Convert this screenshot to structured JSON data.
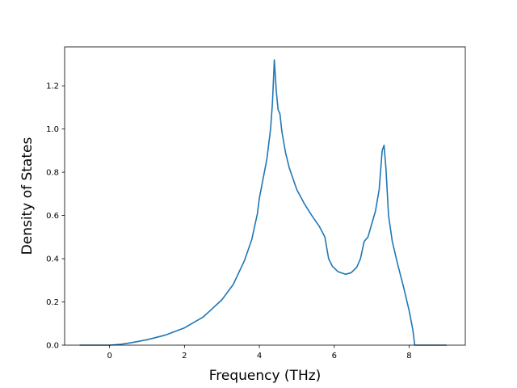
{
  "chart_data": {
    "type": "line",
    "title": "",
    "xlabel": "Frequency (THz)",
    "ylabel": "Density of States",
    "xlim": [
      -1.2,
      9.5
    ],
    "ylim": [
      0.0,
      1.38
    ],
    "xticks": [
      0,
      2,
      4,
      6,
      8
    ],
    "yticks": [
      0.0,
      0.2,
      0.4,
      0.6,
      0.8,
      1.0,
      1.2
    ],
    "xtick_labels": [
      "0",
      "2",
      "4",
      "6",
      "8"
    ],
    "ytick_labels": [
      "0.0",
      "0.2",
      "0.4",
      "0.6",
      "0.8",
      "1.0",
      "1.2"
    ],
    "grid": false,
    "legend": "none",
    "series": [
      {
        "color": "#1f77b4",
        "x": [
          -0.8,
          0.0,
          0.3,
          0.6,
          1.0,
          1.5,
          2.0,
          2.5,
          3.0,
          3.3,
          3.6,
          3.8,
          3.95,
          4.0,
          4.1,
          4.2,
          4.3,
          4.35,
          4.4,
          4.45,
          4.5,
          4.55,
          4.6,
          4.7,
          4.8,
          5.0,
          5.2,
          5.4,
          5.6,
          5.75,
          5.85,
          5.95,
          6.1,
          6.3,
          6.45,
          6.6,
          6.7,
          6.75,
          6.8,
          6.9,
          7.0,
          7.1,
          7.2,
          7.28,
          7.33,
          7.38,
          7.45,
          7.55,
          7.7,
          7.85,
          8.0,
          8.1,
          8.15,
          8.4,
          9.0
        ],
        "y": [
          0.0,
          0.0,
          0.004,
          0.012,
          0.025,
          0.047,
          0.08,
          0.13,
          0.21,
          0.28,
          0.39,
          0.49,
          0.61,
          0.68,
          0.77,
          0.86,
          1.0,
          1.12,
          1.32,
          1.18,
          1.09,
          1.07,
          0.99,
          0.89,
          0.82,
          0.72,
          0.655,
          0.6,
          0.55,
          0.5,
          0.4,
          0.365,
          0.34,
          0.328,
          0.335,
          0.36,
          0.4,
          0.44,
          0.48,
          0.5,
          0.56,
          0.62,
          0.72,
          0.9,
          0.925,
          0.82,
          0.6,
          0.48,
          0.37,
          0.27,
          0.16,
          0.07,
          0.0,
          0.0,
          0.0
        ]
      }
    ]
  }
}
